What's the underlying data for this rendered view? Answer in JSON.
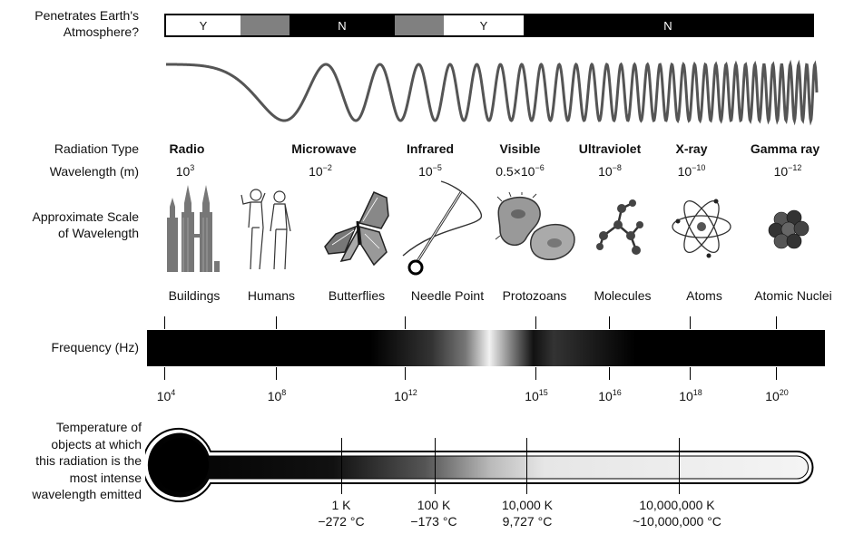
{
  "row_labels": {
    "atmosphere": [
      "Penetrates Earth's",
      "Atmosphere?"
    ],
    "radiation_type": "Radiation Type",
    "wavelength": "Wavelength (m)",
    "scale": [
      "Approximate Scale",
      "of Wavelength"
    ],
    "frequency": "Frequency (Hz)",
    "temperature": [
      "Temperature of",
      "objects at which",
      "this radiation is the",
      "most intense",
      "wavelength emitted"
    ]
  },
  "atmosphere_segments": [
    {
      "label": "Y",
      "fill": "#ffffff"
    },
    {
      "label": "",
      "fill": "#808080"
    },
    {
      "label": "N",
      "fill": "#000000"
    },
    {
      "label": "",
      "fill": "#808080"
    },
    {
      "label": "Y",
      "fill": "#ffffff"
    },
    {
      "label": "N",
      "fill": "#000000"
    }
  ],
  "radiation": [
    {
      "name": "Radio",
      "wl_base": "10",
      "wl_exp": "3",
      "scale": "Buildings",
      "icon": "buildings-icon"
    },
    {
      "name": "Microwave",
      "wl_base": "10",
      "wl_exp": "−2",
      "scale": "Humans",
      "icon": "humans-icon"
    },
    {
      "name": "",
      "wl_base": "",
      "wl_exp": "",
      "scale": "Butterflies",
      "icon": "butterfly-icon"
    },
    {
      "name": "Infrared",
      "wl_base": "10",
      "wl_exp": "−5",
      "scale": "Needle Point",
      "icon": "needle-icon"
    },
    {
      "name": "Visible",
      "wl_base": "0.5×10",
      "wl_exp": "−6",
      "scale": "Protozoans",
      "icon": "protozoan-icon"
    },
    {
      "name": "Ultraviolet",
      "wl_base": "10",
      "wl_exp": "−8",
      "scale": "Molecules",
      "icon": "molecule-icon"
    },
    {
      "name": "X-ray",
      "wl_base": "10",
      "wl_exp": "−10",
      "scale": "Atoms",
      "icon": "atom-icon"
    },
    {
      "name": "Gamma ray",
      "wl_base": "10",
      "wl_exp": "−12",
      "scale": "Atomic Nuclei",
      "icon": "nucleus-icon"
    }
  ],
  "frequency_ticks": [
    {
      "base": "10",
      "exp": "4"
    },
    {
      "base": "10",
      "exp": "8"
    },
    {
      "base": "10",
      "exp": "12"
    },
    {
      "base": "10",
      "exp": "15"
    },
    {
      "base": "10",
      "exp": "16"
    },
    {
      "base": "10",
      "exp": "18"
    },
    {
      "base": "10",
      "exp": "20"
    }
  ],
  "temperature_ticks": [
    {
      "kelvin": "1 K",
      "celsius": "−272 °C"
    },
    {
      "kelvin": "100 K",
      "celsius": "−173 °C"
    },
    {
      "kelvin": "10,000 K",
      "celsius": "9,727 °C"
    },
    {
      "kelvin": "10,000,000 K",
      "celsius": "~10,000,000 °C"
    }
  ]
}
